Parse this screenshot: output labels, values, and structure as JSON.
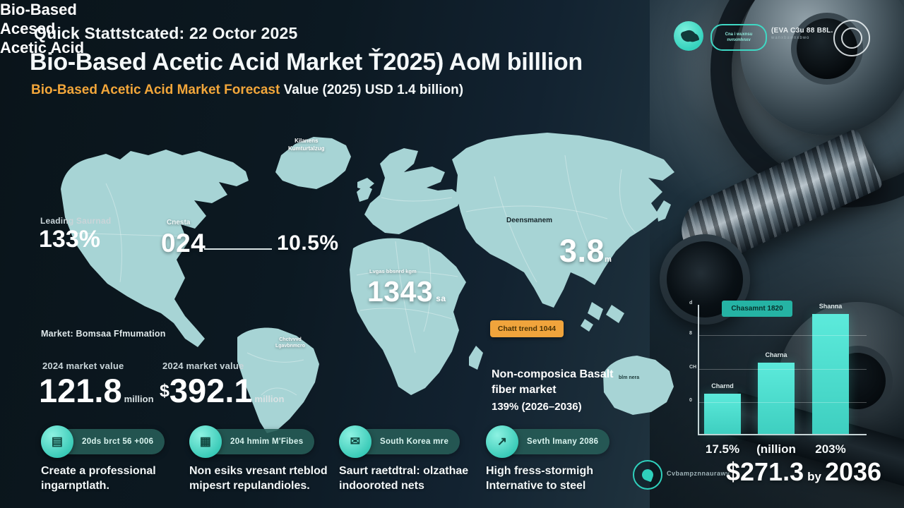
{
  "colors": {
    "accent_teal": "#3fdcc9",
    "accent_orange": "#f0a43c",
    "map_teal": "#a7d4d5",
    "bar_teal": "#4ce0d0",
    "pill_teal": "#275d58"
  },
  "header": {
    "date_line": "Quick Stattstcated: 22 Octor 2025",
    "title": "Bio-Based Acetic Acid Market Ť2025) AoM billlion",
    "subtitle_highlight": "Bio-Based Acetic Acid Market Forecast",
    "subtitle_rest": " Value (2025) USD 1.4 billion)"
  },
  "logos": {
    "logo2_line1": "Cna i wuxnsu",
    "logo2_line2": "nvnxmhnxv",
    "logo3_line1": "(EVA C3u 88 B8L.",
    "logo3_line2": "wanxbawnxbwo"
  },
  "left_panel": {
    "leading_label": "Leading Saurnad",
    "leading_value": "133%",
    "product_line1": "Bio-Based",
    "product_line2": "Acesed",
    "product_line3": "Acetic Acid",
    "method_line": "Market: Bomsaa Ffmumation",
    "stat1_label": "2024 market value",
    "stat1_value": "121.8",
    "stat1_unit": "million",
    "stat2_label": "2024 market value",
    "stat2_currency": "$",
    "stat2_value": "392.1",
    "stat2_unit": "million"
  },
  "map": {
    "greenland_line1": "Kilanens",
    "greenland_line2": "Kumturtalzug",
    "na_tag": "Cnesta",
    "na_value": "024",
    "growth_value": "10.5%",
    "europe_tag": "Lvgas bbsnrd kgm",
    "europe_value": "1343",
    "europe_suffix": "sa",
    "asia_tag": "Deensmanem",
    "asia_value": "3.8",
    "asia_suffix": "m",
    "sa_line1": "Chctvvvd",
    "sa_line2": "Lgavbnmcro",
    "australia_tag": "blm nera",
    "orange_badge": "Chatt trend 1044",
    "basalt_line1": "Non-composica Basalt",
    "basalt_line2": "fiber market",
    "basalt_line3": "139% (2026–2036)"
  },
  "badges": [
    {
      "icon": "▤",
      "pill": "20ds brct 56 +006",
      "caption": "Create a professional ingarnptlath."
    },
    {
      "icon": "▦",
      "pill": "204 hmim M'Fibes",
      "caption": "Non esiks vresant rteblod mipesrt repulandioles."
    },
    {
      "icon": "✉",
      "pill": "South Korea mre",
      "caption": "Saurt raetdtral: olzathae indooroted nets"
    },
    {
      "icon": "↗",
      "pill": "Sevth Imany 2086",
      "caption": "High fress-stormigh Internative to steel"
    }
  ],
  "chart_data": {
    "type": "bar",
    "title_badge": "Chasamnt 1820",
    "categories": [
      "17.5%",
      "(nillion",
      "203%"
    ],
    "values": [
      31,
      55,
      93
    ],
    "bar_labels": [
      "Charnd",
      "Charna",
      "Shanna"
    ],
    "tick_labels": [
      "d",
      "8",
      "CH",
      "0"
    ],
    "ylim": [
      0,
      100
    ],
    "grid": true,
    "legend_position": "none",
    "bar_color": "#4ce0d0"
  },
  "footer": {
    "attribution": "Cvbampznnaurawv",
    "value": "$271.3",
    "connector": "by",
    "year": "2036"
  }
}
